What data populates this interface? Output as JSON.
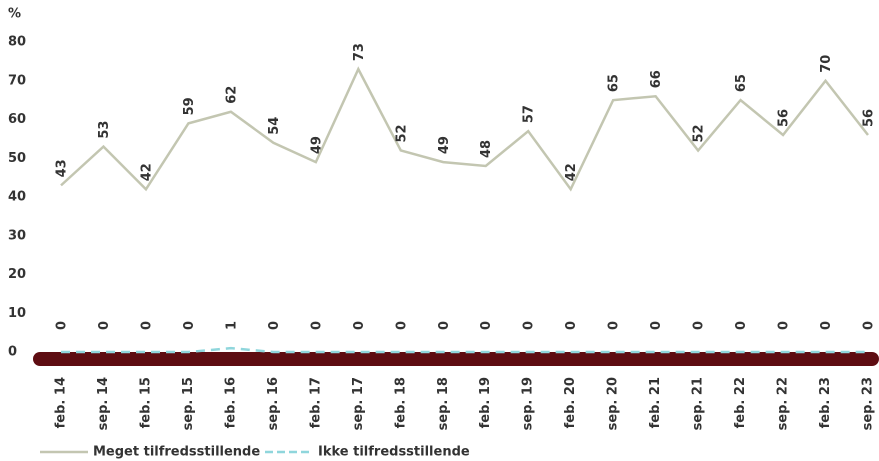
{
  "chart_data": {
    "type": "line",
    "y_unit_label": "%",
    "categories": [
      "feb. 14",
      "sep. 14",
      "feb. 15",
      "sep. 15",
      "feb. 16",
      "sep. 16",
      "feb. 17",
      "sep. 17",
      "feb. 18",
      "sep. 18",
      "feb. 19",
      "sep. 19",
      "feb. 20",
      "sep. 20",
      "feb. 21",
      "sep. 21",
      "feb. 22",
      "sep. 22",
      "feb. 23",
      "sep. 23"
    ],
    "series": [
      {
        "name": "Meget tilfredsstillende",
        "color": "#c3c6b1",
        "dashed": false,
        "values": [
          43,
          53,
          42,
          59,
          62,
          54,
          49,
          73,
          52,
          49,
          48,
          57,
          42,
          65,
          66,
          52,
          65,
          56,
          70,
          56
        ]
      },
      {
        "name": "Ikke tilfredsstillende",
        "color": "#8fd6dc",
        "dashed": true,
        "values": [
          0,
          0,
          0,
          0,
          1,
          0,
          0,
          0,
          0,
          0,
          0,
          0,
          0,
          0,
          0,
          0,
          0,
          0,
          0,
          0
        ]
      }
    ],
    "ylim": [
      0,
      80
    ],
    "yticks": [
      0,
      10,
      20,
      30,
      40,
      50,
      60,
      70,
      80
    ],
    "grid": false
  }
}
